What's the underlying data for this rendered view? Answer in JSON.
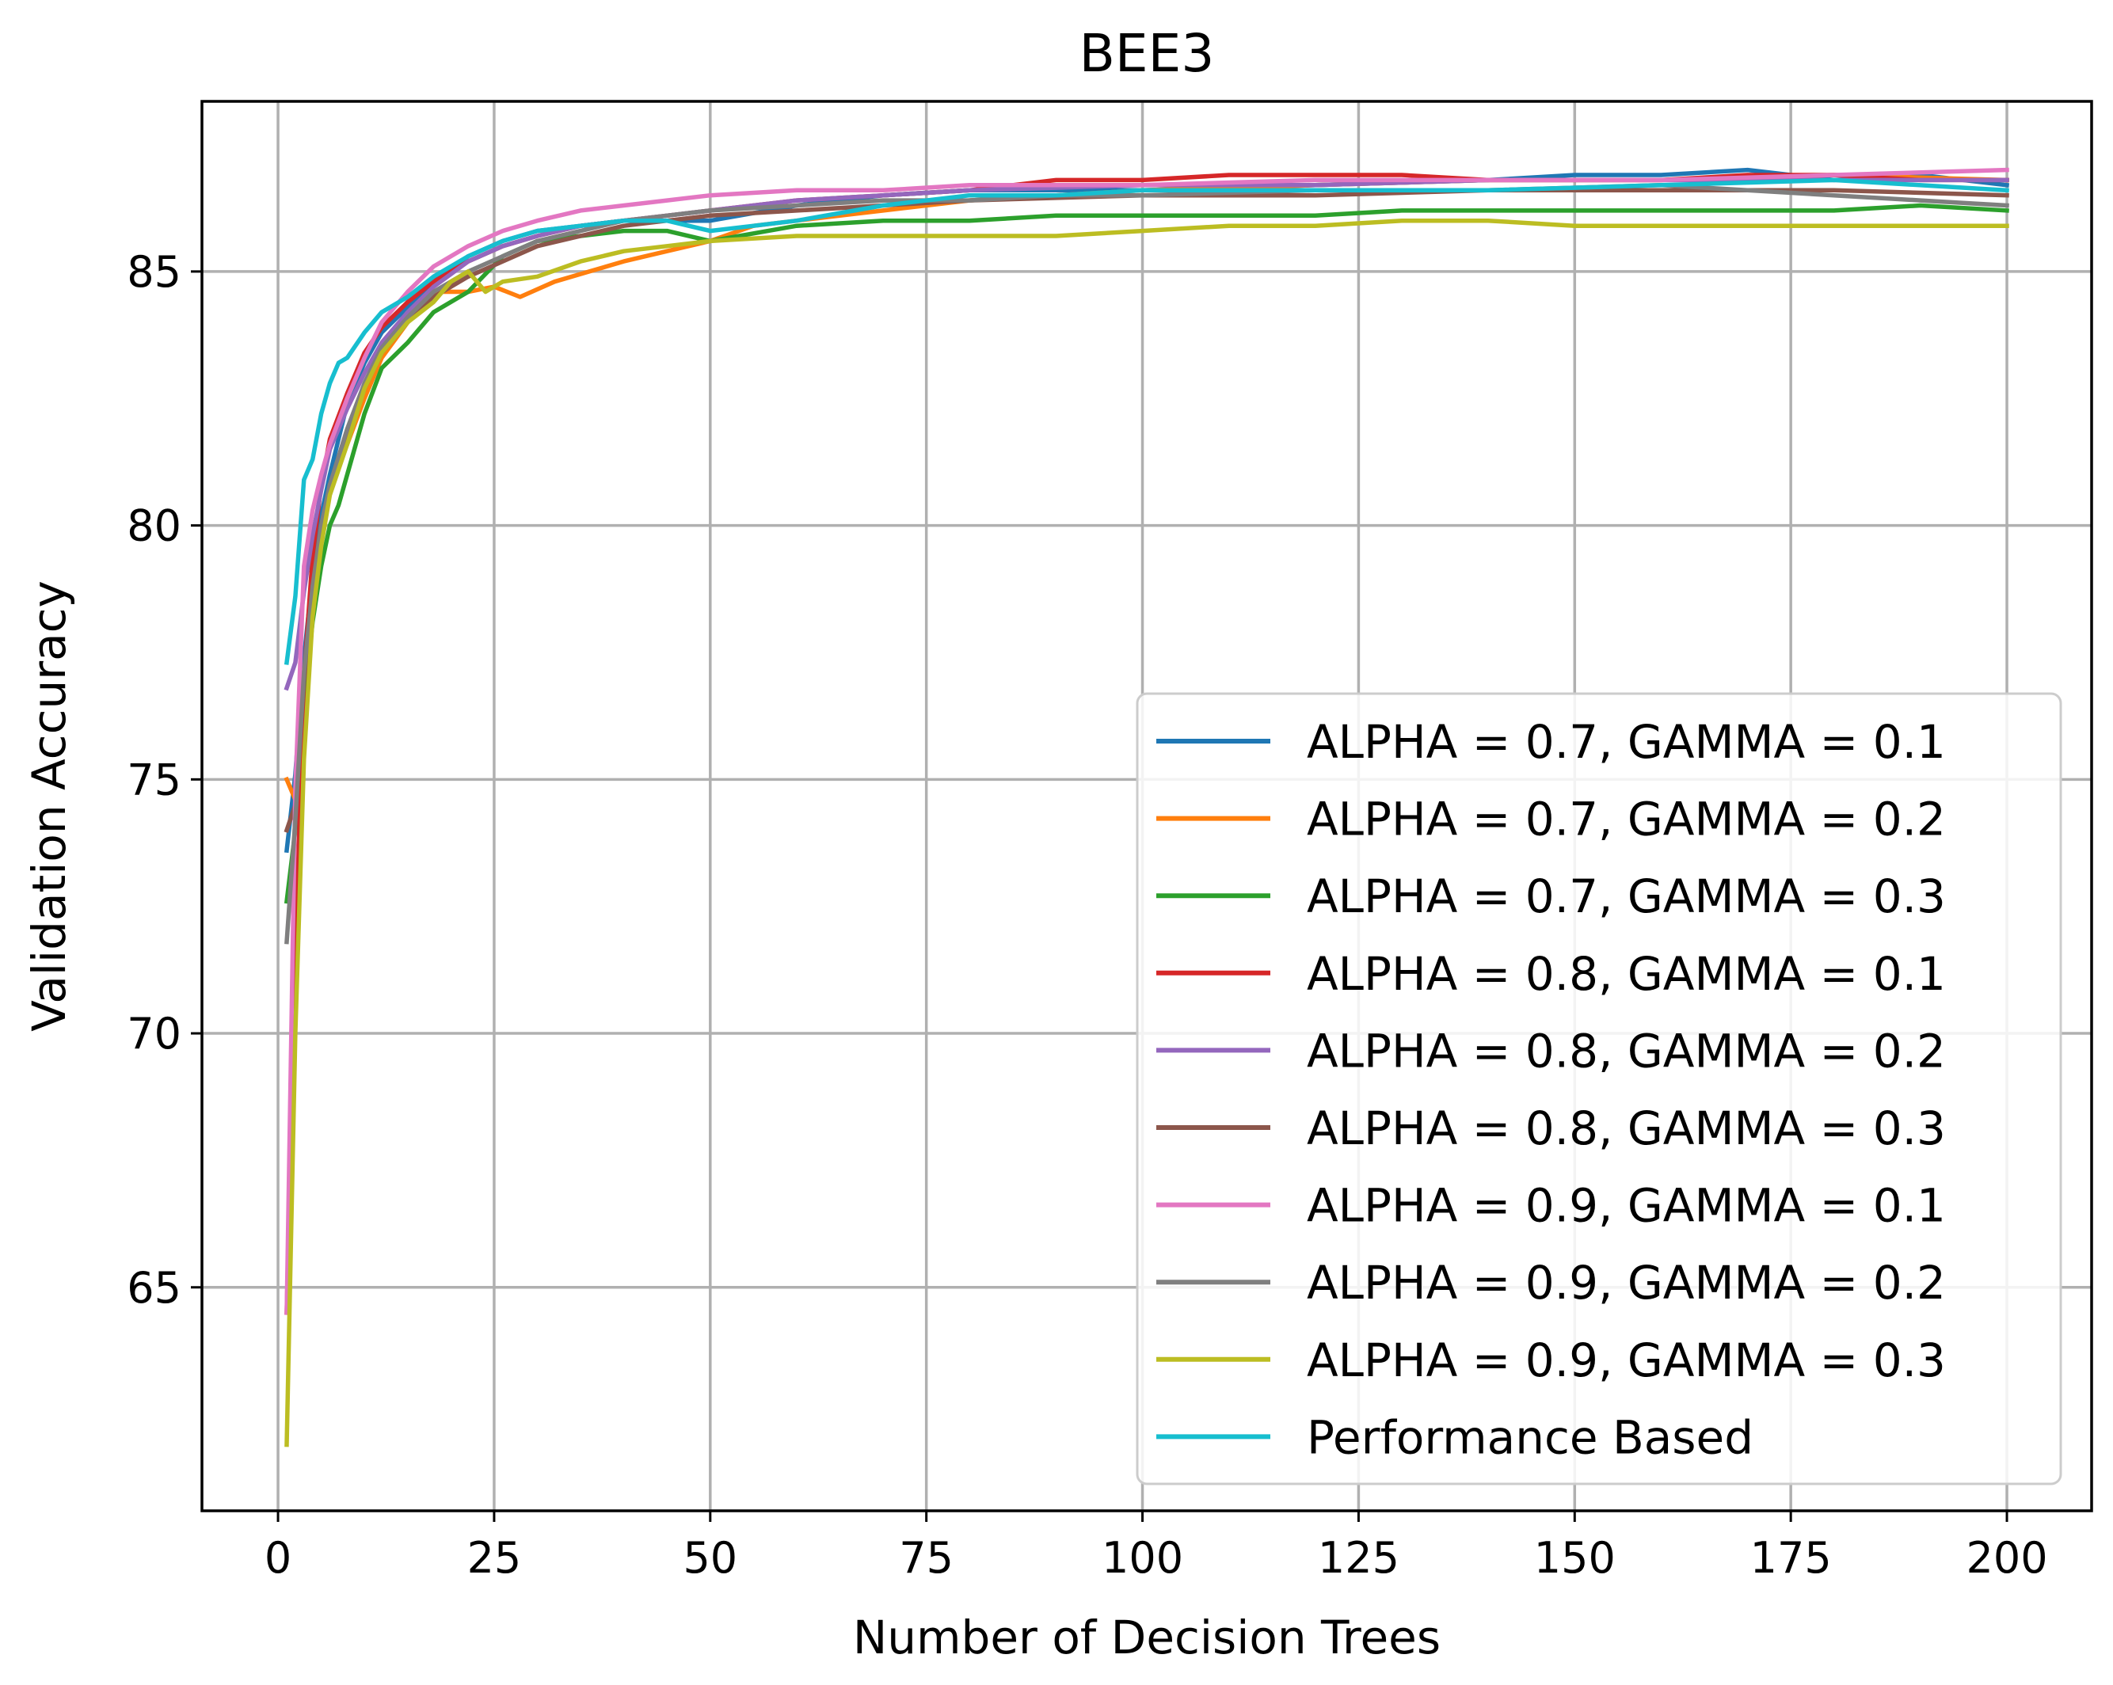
{
  "chart_data": {
    "type": "line",
    "title": "BEE3",
    "xlabel": "Number of Decision Trees",
    "ylabel": "Validation Accuracy",
    "xlim": [
      -8.8,
      209.8
    ],
    "ylim": [
      60.6,
      88.35
    ],
    "xticks": [
      0,
      25,
      50,
      75,
      100,
      125,
      150,
      175,
      200
    ],
    "yticks": [
      65,
      70,
      75,
      80,
      85
    ],
    "grid": true,
    "legend_position": "lower-right",
    "series": [
      {
        "name": "ALPHA = 0.7, GAMMA = 0.1",
        "color": "#1f77b4",
        "x": [
          1,
          2,
          3,
          4,
          5,
          6,
          8,
          10,
          12,
          15,
          18,
          22,
          26,
          30,
          35,
          40,
          45,
          50,
          60,
          70,
          80,
          90,
          100,
          120,
          140,
          150,
          160,
          170,
          180,
          190,
          200
        ],
        "y": [
          73.6,
          75.1,
          77.4,
          79.0,
          80.2,
          81.0,
          82.4,
          83.2,
          83.8,
          84.3,
          84.8,
          85.3,
          85.6,
          85.8,
          85.9,
          86.0,
          86.0,
          86.0,
          86.3,
          86.5,
          86.6,
          86.6,
          86.6,
          86.7,
          86.8,
          86.9,
          86.9,
          87.0,
          86.8,
          86.9,
          86.7
        ]
      },
      {
        "name": "ALPHA = 0.7, GAMMA = 0.2",
        "color": "#ff7f0e",
        "x": [
          1,
          2,
          3,
          4,
          5,
          6,
          8,
          10,
          12,
          15,
          18,
          22,
          25,
          28,
          32,
          36,
          40,
          45,
          50,
          55,
          60,
          70,
          80,
          90,
          100,
          120,
          140,
          160,
          180,
          200
        ],
        "y": [
          75.0,
          74.6,
          76.8,
          78.6,
          79.9,
          80.8,
          81.6,
          82.5,
          83.3,
          84.0,
          84.6,
          84.6,
          84.7,
          84.5,
          84.8,
          85.0,
          85.2,
          85.4,
          85.6,
          85.9,
          86.0,
          86.2,
          86.4,
          86.5,
          86.6,
          86.7,
          86.8,
          86.8,
          86.9,
          86.8
        ]
      },
      {
        "name": "ALPHA = 0.7, GAMMA = 0.3",
        "color": "#2ca02c",
        "x": [
          1,
          2,
          3,
          4,
          5,
          6,
          7,
          8,
          10,
          12,
          15,
          18,
          22,
          26,
          30,
          35,
          40,
          45,
          50,
          60,
          70,
          80,
          90,
          100,
          110,
          120,
          130,
          140,
          150,
          160,
          170,
          180,
          190,
          200
        ],
        "y": [
          72.6,
          74.0,
          76.5,
          78.1,
          79.2,
          80.0,
          80.4,
          81.0,
          82.2,
          83.1,
          83.6,
          84.2,
          84.6,
          85.3,
          85.6,
          85.7,
          85.8,
          85.8,
          85.6,
          85.9,
          86.0,
          86.0,
          86.1,
          86.1,
          86.1,
          86.1,
          86.2,
          86.2,
          86.2,
          86.2,
          86.2,
          86.2,
          86.3,
          86.2
        ]
      },
      {
        "name": "ALPHA = 0.8, GAMMA = 0.1",
        "color": "#d62728",
        "x": [
          1,
          2,
          3,
          4,
          5,
          6,
          8,
          10,
          12,
          15,
          18,
          22,
          26,
          30,
          35,
          40,
          45,
          50,
          60,
          70,
          80,
          90,
          100,
          110,
          120,
          130,
          140,
          150,
          160,
          170,
          180,
          190,
          200
        ],
        "y": [
          64.5,
          71.5,
          77.0,
          79.4,
          80.8,
          81.7,
          82.6,
          83.4,
          83.9,
          84.4,
          84.8,
          85.2,
          85.5,
          85.7,
          85.9,
          86.0,
          86.1,
          86.2,
          86.4,
          86.5,
          86.6,
          86.8,
          86.8,
          86.9,
          86.9,
          86.9,
          86.8,
          86.8,
          86.8,
          86.9,
          86.9,
          86.8,
          86.8
        ]
      },
      {
        "name": "ALPHA = 0.8, GAMMA = 0.2",
        "color": "#9467bd",
        "x": [
          1,
          2,
          3,
          4,
          5,
          6,
          8,
          10,
          12,
          15,
          18,
          22,
          26,
          30,
          35,
          40,
          45,
          50,
          60,
          70,
          80,
          100,
          120,
          140,
          160,
          180,
          200
        ],
        "y": [
          76.8,
          77.3,
          78.7,
          79.8,
          80.7,
          81.5,
          82.3,
          83.0,
          83.6,
          84.2,
          84.7,
          85.2,
          85.5,
          85.7,
          85.9,
          86.0,
          86.1,
          86.2,
          86.4,
          86.5,
          86.6,
          86.7,
          86.7,
          86.8,
          86.8,
          86.8,
          86.8
        ]
      },
      {
        "name": "ALPHA = 0.8, GAMMA = 0.3",
        "color": "#8c564b",
        "x": [
          1,
          2,
          3,
          4,
          5,
          6,
          8,
          10,
          12,
          15,
          18,
          22,
          26,
          30,
          35,
          40,
          45,
          50,
          60,
          70,
          80,
          100,
          120,
          140,
          160,
          180,
          200
        ],
        "y": [
          74.0,
          74.5,
          76.9,
          78.6,
          79.8,
          80.7,
          81.8,
          82.7,
          83.4,
          84.0,
          84.5,
          84.9,
          85.2,
          85.5,
          85.7,
          85.9,
          86.0,
          86.1,
          86.2,
          86.3,
          86.4,
          86.5,
          86.5,
          86.6,
          86.6,
          86.6,
          86.5
        ]
      },
      {
        "name": "ALPHA = 0.9, GAMMA = 0.1",
        "color": "#e377c2",
        "x": [
          1,
          2,
          3,
          4,
          5,
          6,
          8,
          10,
          12,
          15,
          18,
          22,
          26,
          30,
          35,
          40,
          45,
          50,
          60,
          70,
          80,
          90,
          100,
          120,
          140,
          160,
          180,
          200
        ],
        "y": [
          64.5,
          74.8,
          79.2,
          80.3,
          81.0,
          81.6,
          82.5,
          83.3,
          84.0,
          84.6,
          85.1,
          85.5,
          85.8,
          86.0,
          86.2,
          86.3,
          86.4,
          86.5,
          86.6,
          86.6,
          86.7,
          86.7,
          86.7,
          86.8,
          86.8,
          86.8,
          86.9,
          87.0
        ]
      },
      {
        "name": "ALPHA = 0.9, GAMMA = 0.2",
        "color": "#7f7f7f",
        "x": [
          1,
          2,
          3,
          4,
          5,
          6,
          8,
          10,
          12,
          15,
          18,
          22,
          26,
          30,
          35,
          40,
          45,
          50,
          60,
          70,
          80,
          90,
          100,
          120,
          140,
          160,
          170,
          180,
          190,
          200
        ],
        "y": [
          71.8,
          74.2,
          77.1,
          78.8,
          80.0,
          80.8,
          81.9,
          82.8,
          83.5,
          84.1,
          84.6,
          85.0,
          85.3,
          85.6,
          85.8,
          86.0,
          86.1,
          86.2,
          86.3,
          86.4,
          86.4,
          86.5,
          86.5,
          86.6,
          86.6,
          86.7,
          86.6,
          86.5,
          86.4,
          86.3
        ]
      },
      {
        "name": "ALPHA = 0.9, GAMMA = 0.3",
        "color": "#bcbd22",
        "x": [
          1,
          2,
          3,
          4,
          5,
          6,
          7,
          8,
          10,
          12,
          15,
          18,
          20,
          22,
          24,
          26,
          30,
          35,
          40,
          45,
          50,
          60,
          70,
          80,
          90,
          100,
          110,
          120,
          130,
          140,
          150,
          160,
          170,
          180,
          190,
          200
        ],
        "y": [
          61.9,
          70.0,
          75.4,
          78.2,
          79.6,
          80.6,
          81.1,
          81.6,
          82.7,
          83.4,
          84.0,
          84.4,
          84.8,
          85.0,
          84.6,
          84.8,
          84.9,
          85.2,
          85.4,
          85.5,
          85.6,
          85.7,
          85.7,
          85.7,
          85.7,
          85.8,
          85.9,
          85.9,
          86.0,
          86.0,
          85.9,
          85.9,
          85.9,
          85.9,
          85.9,
          85.9
        ]
      },
      {
        "name": "Performance Based",
        "color": "#17becf",
        "x": [
          1,
          2,
          3,
          4,
          5,
          6,
          7,
          8,
          10,
          12,
          15,
          18,
          22,
          26,
          30,
          35,
          40,
          45,
          50,
          55,
          60,
          70,
          80,
          90,
          100,
          120,
          140,
          160,
          180,
          200
        ],
        "y": [
          77.3,
          78.6,
          80.9,
          81.3,
          82.2,
          82.8,
          83.2,
          83.3,
          83.8,
          84.2,
          84.5,
          84.9,
          85.3,
          85.6,
          85.8,
          85.9,
          86.0,
          86.0,
          85.8,
          85.9,
          86.0,
          86.3,
          86.5,
          86.5,
          86.6,
          86.6,
          86.6,
          86.7,
          86.8,
          86.6
        ]
      }
    ]
  }
}
